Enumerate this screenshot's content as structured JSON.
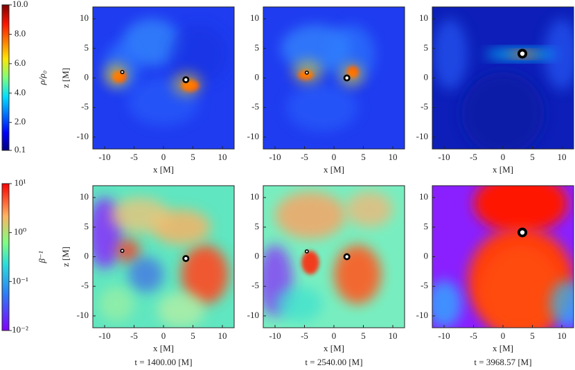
{
  "chart_data": [
    {
      "type": "colorbar",
      "label": "ρ/ρ₀",
      "ylim": [
        0.1,
        10
      ],
      "yticks": [
        {
          "value": 10,
          "label": "10.0"
        },
        {
          "value": 8,
          "label": "8.0"
        },
        {
          "value": 6,
          "label": "6.0"
        },
        {
          "value": 4,
          "label": "4.0"
        },
        {
          "value": 2,
          "label": "2.0"
        },
        0.1
      ]
    },
    {
      "type": "heatmap",
      "xlabel": "x [M]",
      "ylabel": "z [M]",
      "xlim": [
        -12,
        12
      ],
      "ylim": [
        -12,
        12
      ],
      "xticks": [
        -10,
        -5,
        0,
        5,
        10
      ],
      "yticks": [
        -10,
        -5,
        0,
        5,
        10
      ]
    },
    {
      "type": "heatmap",
      "xlabel": "x [M]",
      "xlim": [
        -12,
        12
      ],
      "ylim": [
        -12,
        12
      ],
      "xticks": [
        -10,
        -5,
        0,
        5,
        10
      ],
      "yticks": [
        -10,
        -5,
        0,
        5,
        10
      ]
    },
    {
      "type": "heatmap",
      "xlabel": "x [M]",
      "xlim": [
        -12,
        12
      ],
      "ylim": [
        -12,
        12
      ],
      "xticks": [
        -10,
        -5,
        0,
        5,
        10
      ],
      "yticks": [
        -10,
        -5,
        0,
        5,
        10
      ]
    },
    {
      "type": "colorbar",
      "label": "β⁻¹",
      "log_scale": true,
      "ylim": [
        0.01,
        10
      ],
      "yticks": [
        {
          "value": 10,
          "label": "10¹"
        },
        {
          "value": 1,
          "label": "10⁰"
        },
        {
          "value": 0.1,
          "label": "10⁻¹"
        },
        {
          "value": 0.01,
          "label": "10⁻²"
        }
      ]
    },
    {
      "type": "heatmap",
      "xlabel": "x [M]",
      "ylabel": "z [M]",
      "caption": "t = 1400.00 [M]",
      "xlim": [
        -12,
        12
      ],
      "ylim": [
        -12,
        12
      ],
      "xticks": [
        -10,
        -5,
        0,
        5,
        10
      ],
      "yticks": [
        -10,
        -5,
        0,
        5,
        10
      ]
    },
    {
      "type": "heatmap",
      "xlabel": "x [M]",
      "caption": "t = 2540.00 [M]",
      "xlim": [
        -12,
        12
      ],
      "ylim": [
        -12,
        12
      ],
      "xticks": [
        -10,
        -5,
        0,
        5,
        10
      ],
      "yticks": [
        -10,
        -5,
        0,
        5,
        10
      ]
    },
    {
      "type": "heatmap",
      "xlabel": "x [M]",
      "caption": "t = 3968.57 [M]",
      "xlim": [
        -12,
        12
      ],
      "ylim": [
        -12,
        12
      ],
      "xticks": [
        -10,
        -5,
        0,
        5,
        10
      ],
      "yticks": [
        -10,
        -5,
        0,
        5,
        10
      ]
    }
  ]
}
